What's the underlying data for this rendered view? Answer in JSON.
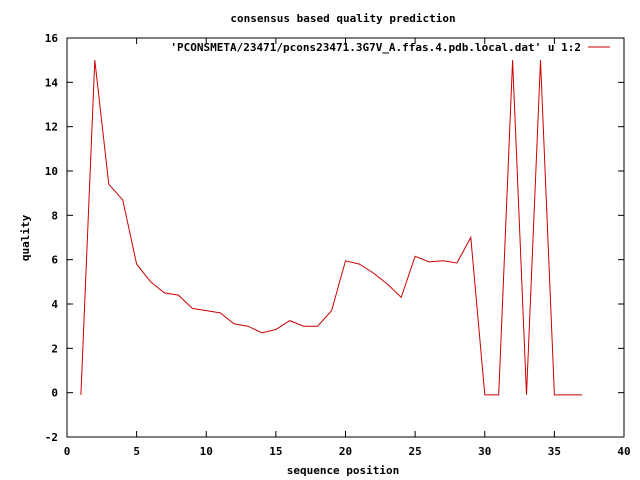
{
  "chart_data": {
    "type": "line",
    "title": "consensus based quality prediction",
    "xlabel": "sequence position",
    "ylabel": "quality",
    "xlim": [
      0,
      40
    ],
    "ylim": [
      -2,
      16
    ],
    "xticks": [
      "0",
      "5",
      "10",
      "15",
      "20",
      "25",
      "30",
      "35",
      "40"
    ],
    "yticks": [
      "-2",
      "0",
      "2",
      "4",
      "6",
      "8",
      "10",
      "12",
      "14",
      "16"
    ],
    "grid": false,
    "legend_position": "top-right",
    "series_color": "#cc0000",
    "series": [
      {
        "name": "'PCONSMETA/23471/pcons23471.3G7V_A.ffas.4.pdb.local.dat' u 1:2",
        "x": [
          1,
          2,
          3,
          4,
          5,
          6,
          7,
          8,
          9,
          10,
          11,
          12,
          13,
          14,
          15,
          16,
          17,
          18,
          19,
          20,
          21,
          22,
          23,
          24,
          25,
          26,
          27,
          28,
          29,
          30,
          31,
          32,
          33,
          34,
          35,
          36,
          37
        ],
        "y": [
          -0.1,
          15,
          9.4,
          8.7,
          5.8,
          5.0,
          4.5,
          4.4,
          3.8,
          3.7,
          3.6,
          3.1,
          3.0,
          2.7,
          2.85,
          3.25,
          3.0,
          3.0,
          3.7,
          5.95,
          5.8,
          5.4,
          4.9,
          4.3,
          6.15,
          5.9,
          5.95,
          5.85,
          7.0,
          -0.1,
          -0.1,
          15,
          -0.1,
          15,
          -0.1,
          -0.1,
          -0.1
        ]
      }
    ]
  }
}
